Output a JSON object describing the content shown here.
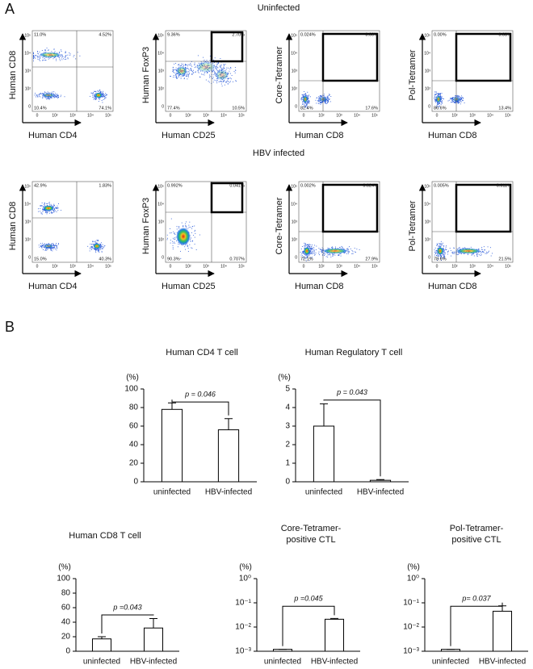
{
  "panel_a": {
    "label": "A",
    "axis_ticks": [
      "0",
      "10²",
      "10³",
      "10⁴",
      "10⁵"
    ],
    "rows": [
      {
        "title": "Uninfected",
        "plots": [
          {
            "ylabel": "Human CD8",
            "xlabel": "Human CD4",
            "quadrants": [
              "11.0%",
              "4.52%",
              "10.4%",
              "74.1%"
            ]
          },
          {
            "ylabel": "Human FoxP3",
            "xlabel": "Human CD25",
            "quadrants": [
              "9.36%",
              "2.70%",
              "77.4%",
              "10.5%"
            ]
          },
          {
            "ylabel": "Core-Tetramer",
            "xlabel": "Human CD8",
            "quadrants": [
              "0.024%",
              "0.00%",
              "82.4%",
              "17.6%"
            ]
          },
          {
            "ylabel": "Pol-Tetramer",
            "xlabel": "Human CD8",
            "quadrants": [
              "0.00%",
              "0.03%",
              "86.6%",
              "13.4%"
            ]
          }
        ]
      },
      {
        "title": "HBV infected",
        "plots": [
          {
            "ylabel": "Human CD8",
            "xlabel": "Human CD4",
            "quadrants": [
              "42.9%",
              "1.83%",
              "15.0%",
              "40.3%"
            ]
          },
          {
            "ylabel": "Human FoxP3",
            "xlabel": "Human CD25",
            "quadrants": [
              "0.992%",
              "0.041%",
              "90.3%",
              "0.707%"
            ]
          },
          {
            "ylabel": "Core-Tetramer",
            "xlabel": "Human CD8",
            "quadrants": [
              "0.002%",
              "0.024%",
              "72.1%",
              "27.9%"
            ]
          },
          {
            "ylabel": "Pol-Tetramer",
            "xlabel": "Human CD8",
            "quadrants": [
              "0.005%",
              "0.011%",
              "78.6%",
              "21.5%"
            ]
          }
        ]
      }
    ]
  },
  "panel_b": {
    "label": "B"
  },
  "chart_data": [
    {
      "type": "bar",
      "title": [
        "Human CD4 T cell"
      ],
      "ylabel": "(%)",
      "categories": [
        "uninfected",
        "HBV-infected"
      ],
      "values": [
        78,
        56
      ],
      "errors": [
        7,
        12
      ],
      "color": "#ffffff",
      "ylim": [
        0,
        100
      ],
      "yticks": [
        0,
        20,
        40,
        60,
        80,
        100
      ],
      "annotation": "p = 0.046"
    },
    {
      "type": "bar",
      "title": [
        "Human Regulatory T cell"
      ],
      "ylabel": "(%)",
      "categories": [
        "uninfected",
        "HBV-infected"
      ],
      "values": [
        3.0,
        0.08
      ],
      "errors": [
        1.2,
        0.04
      ],
      "color": "#ffffff",
      "ylim": [
        0,
        5
      ],
      "yticks": [
        0,
        1,
        2,
        3,
        4,
        5
      ],
      "annotation": "p = 0.043"
    },
    {
      "type": "bar",
      "title": [
        "Human CD8 T cell"
      ],
      "ylabel": "(%)",
      "categories": [
        "uninfected",
        "HBV-infected"
      ],
      "values": [
        17,
        32
      ],
      "errors": [
        3,
        13
      ],
      "color": "#ffffff",
      "ylim": [
        0,
        100
      ],
      "yticks": [
        0,
        20,
        40,
        60,
        80,
        100
      ],
      "annotation": "p =0.043"
    },
    {
      "type": "bar",
      "title": [
        "Core-Tetramer-",
        "positive CTL"
      ],
      "ylabel": "(%)",
      "categories": [
        "uninfected",
        "HBV-infected"
      ],
      "values": [
        0.0012,
        0.021
      ],
      "errors": [
        0,
        0.0015
      ],
      "color": "#ffffff",
      "log_scale": true,
      "ylim": [
        0.001,
        1
      ],
      "yticks": [
        {
          "value": 0.001,
          "label": "10⁻³"
        },
        {
          "value": 0.01,
          "label": "10⁻²"
        },
        {
          "value": 0.1,
          "label": "10⁻¹"
        },
        {
          "value": 1,
          "label": "10⁰"
        }
      ],
      "annotation": "p =0.045"
    },
    {
      "type": "bar",
      "title": [
        "Pol-Tetramer-",
        "positive CTL"
      ],
      "ylabel": "(%)",
      "categories": [
        "uninfected",
        "HBV-infected"
      ],
      "values": [
        0.0012,
        0.045
      ],
      "errors": [
        0,
        0.03
      ],
      "color": "#ffffff",
      "log_scale": true,
      "ylim": [
        0.001,
        1
      ],
      "yticks": [
        {
          "value": 0.001,
          "label": "10⁻³"
        },
        {
          "value": 0.01,
          "label": "10⁻²"
        },
        {
          "value": 0.1,
          "label": "10⁻¹"
        },
        {
          "value": 1,
          "label": "10⁰"
        }
      ],
      "annotation": "p= 0.037"
    }
  ]
}
